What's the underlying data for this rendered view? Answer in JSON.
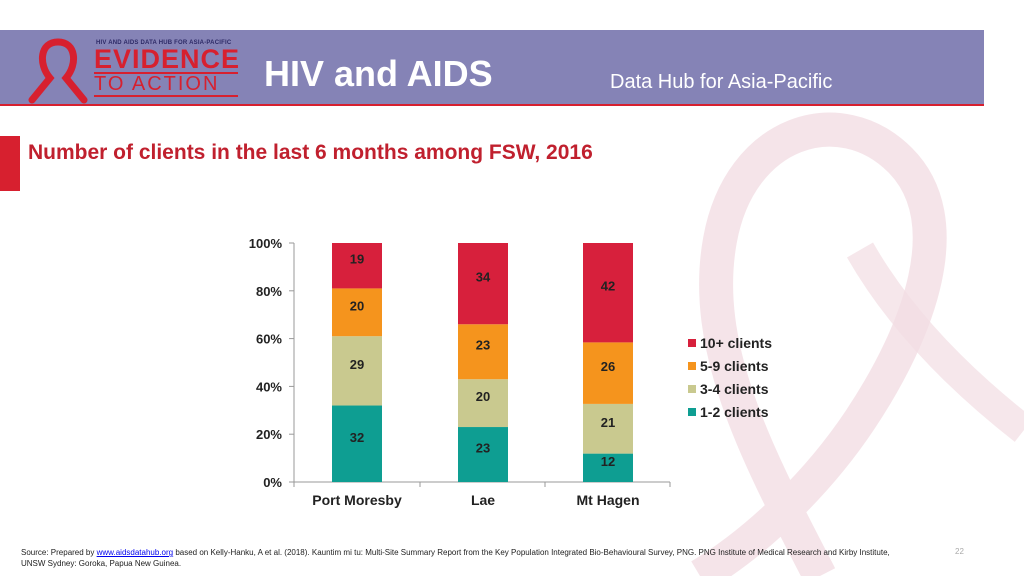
{
  "header": {
    "logo_small_text": "HIV AND AIDS DATA HUB FOR ASIA-PACIFIC",
    "logo_line1": "EVIDENCE",
    "logo_line2": "TO ACTION",
    "title": "HIV and AIDS",
    "subtitle": "Data Hub for Asia-Pacific"
  },
  "colors": {
    "header_bg": "#8583b6",
    "accent_red": "#d7202f",
    "series_10plus": "#d7203c",
    "series_5to9": "#f5941d",
    "series_3to4": "#c9c98f",
    "series_1to2": "#0e9e92"
  },
  "slide_title": "Number of clients in the last 6 months among FSW, 2016",
  "chart_data": {
    "type": "bar",
    "stacked": true,
    "percent_stacked": true,
    "categories": [
      "Port Moresby",
      "Lae",
      "Mt Hagen"
    ],
    "series": [
      {
        "name": "1-2 clients",
        "values": [
          32,
          23,
          12
        ],
        "color": "#0e9e92"
      },
      {
        "name": "3-4 clients",
        "values": [
          29,
          20,
          21
        ],
        "color": "#c9c98f"
      },
      {
        "name": "5-9 clients",
        "values": [
          20,
          23,
          26
        ],
        "color": "#f5941d"
      },
      {
        "name": "10+ clients",
        "values": [
          19,
          34,
          42
        ],
        "color": "#d7203c"
      }
    ],
    "legend_order": [
      "10+ clients",
      "5-9 clients",
      "3-4 clients",
      "1-2 clients"
    ],
    "y_ticks": [
      "0%",
      "20%",
      "40%",
      "60%",
      "80%",
      "100%"
    ],
    "ylim": [
      0,
      100
    ],
    "legend_position": "right",
    "grid": false
  },
  "footer": {
    "source_prefix": "Source: Prepared by ",
    "source_link": "www.aidsdatahub.org",
    "source_rest": " based on Kelly-Hanku, A et al. (2018). Kauntim mi tu: Multi-Site Summary Report from the Key Population Integrated Bio-Behavioural Survey, PNG. PNG Institute of Medical Research and Kirby Institute, UNSW Sydney: Goroka, Papua New Guinea.",
    "page_number": "22"
  }
}
